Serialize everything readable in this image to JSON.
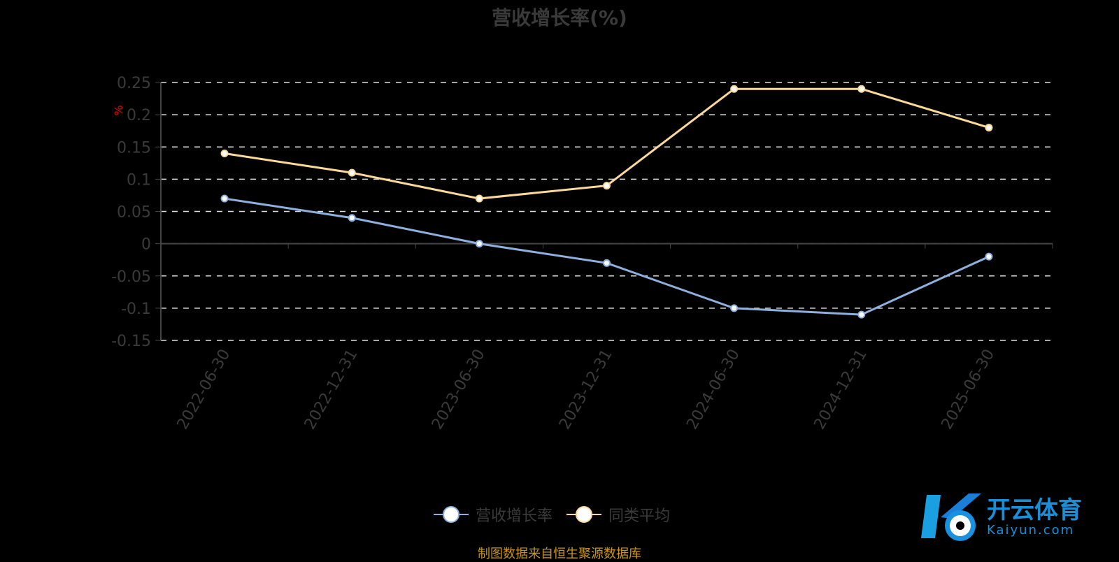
{
  "chart_data": {
    "type": "line",
    "title": "营收增长率(%)",
    "ylabel": "%",
    "categories": [
      "2022-06-30",
      "2022-12-31",
      "2023-06-30",
      "2023-12-31",
      "2024-06-30",
      "2024-12-31",
      "2025-06-30"
    ],
    "ylim": [
      -0.15,
      0.25
    ],
    "yticks": [
      "0.25",
      "0.2",
      "0.15",
      "0.1",
      "0.05",
      "0",
      "-0.05",
      "-0.1",
      "-0.15"
    ],
    "grid": true,
    "legend_position": "bottom",
    "series": [
      {
        "name": "营收增长率",
        "color": "#8eb0de",
        "values": [
          0.07,
          0.04,
          0,
          -0.03,
          -0.1,
          -0.11,
          -0.02
        ]
      },
      {
        "name": "同类平均",
        "color": "#fcd99a",
        "values": [
          0.14,
          0.11,
          0.07,
          0.09,
          0.24,
          0.24,
          0.18
        ]
      }
    ]
  },
  "source": "制图数据来自恒生聚源数据库",
  "watermark": {
    "cn": "开云体育",
    "en": "Kaiyun.com"
  }
}
